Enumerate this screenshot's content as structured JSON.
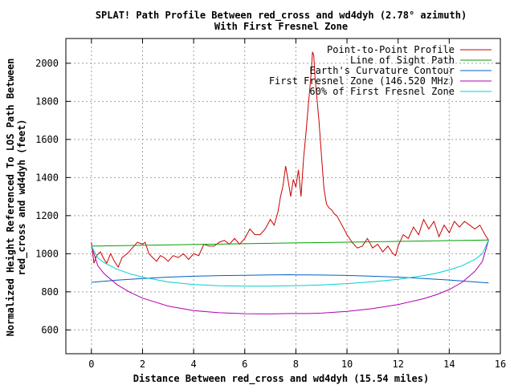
{
  "chart_data": {
    "type": "line",
    "title": "SPLAT! Path Profile Between red_cross and wd4dyh (2.78° azimuth)",
    "subtitle": "With First Fresnel Zone",
    "xlabel": "Distance Between red_cross and wd4dyh (15.54 miles)",
    "ylabel_line1": "Normalized Height Referenced To LOS Path Between",
    "ylabel_line2": "red_cross and wd4dyh (feet)",
    "xlim": [
      -1,
      16
    ],
    "ylim": [
      475,
      2130
    ],
    "xticks": [
      0,
      2,
      4,
      6,
      8,
      10,
      12,
      14,
      16
    ],
    "yticks": [
      600,
      800,
      1000,
      1200,
      1400,
      1600,
      1800,
      2000
    ],
    "grid": true,
    "legend_position": "top-right",
    "series": [
      {
        "name": "Point-to-Point Profile",
        "color": "#cc0000",
        "x": [
          0.0,
          0.1,
          0.2,
          0.35,
          0.5,
          0.6,
          0.75,
          0.9,
          1.05,
          1.2,
          1.4,
          1.6,
          1.8,
          2.0,
          2.1,
          2.25,
          2.4,
          2.55,
          2.7,
          2.85,
          3.0,
          3.2,
          3.4,
          3.6,
          3.8,
          4.0,
          4.2,
          4.4,
          4.6,
          4.8,
          5.0,
          5.2,
          5.4,
          5.6,
          5.8,
          6.0,
          6.2,
          6.4,
          6.6,
          6.8,
          7.0,
          7.15,
          7.3,
          7.4,
          7.5,
          7.6,
          7.7,
          7.8,
          7.9,
          8.0,
          8.1,
          8.2,
          8.3,
          8.4,
          8.5,
          8.6,
          8.65,
          8.7,
          8.75,
          8.8,
          8.9,
          9.0,
          9.1,
          9.2,
          9.3,
          9.4,
          9.5,
          9.6,
          9.8,
          10.0,
          10.2,
          10.4,
          10.6,
          10.8,
          11.0,
          11.2,
          11.4,
          11.6,
          11.8,
          11.9,
          12.0,
          12.2,
          12.4,
          12.6,
          12.8,
          13.0,
          13.2,
          13.4,
          13.6,
          13.8,
          14.0,
          14.2,
          14.4,
          14.6,
          14.8,
          15.0,
          15.2,
          15.4,
          15.54
        ],
        "values": [
          1060,
          950,
          990,
          1010,
          970,
          950,
          1000,
          960,
          930,
          980,
          1000,
          1030,
          1060,
          1050,
          1060,
          1000,
          980,
          960,
          990,
          980,
          960,
          990,
          980,
          1000,
          970,
          1000,
          990,
          1050,
          1040,
          1040,
          1060,
          1070,
          1050,
          1080,
          1050,
          1080,
          1130,
          1100,
          1100,
          1130,
          1180,
          1150,
          1220,
          1300,
          1360,
          1460,
          1380,
          1300,
          1390,
          1350,
          1440,
          1300,
          1500,
          1640,
          1800,
          1950,
          2060,
          2040,
          1920,
          1850,
          1700,
          1520,
          1340,
          1260,
          1240,
          1230,
          1210,
          1200,
          1150,
          1100,
          1060,
          1030,
          1040,
          1080,
          1030,
          1050,
          1010,
          1040,
          1000,
          990,
          1040,
          1100,
          1080,
          1140,
          1100,
          1180,
          1130,
          1170,
          1090,
          1150,
          1110,
          1170,
          1140,
          1170,
          1150,
          1130,
          1150,
          1100,
          1070
        ]
      },
      {
        "name": "Line of Sight Path",
        "color": "#00a000",
        "x": [
          0,
          15.54
        ],
        "values": [
          1040,
          1072
        ]
      },
      {
        "name": "Earth's Curvature Contour",
        "color": "#0060c0",
        "x": [
          0,
          1,
          2,
          3,
          4,
          5,
          6,
          7,
          7.77,
          8,
          9,
          10,
          11,
          12,
          13,
          14,
          15,
          15.54
        ],
        "values": [
          850,
          861,
          870,
          877,
          882,
          885,
          887,
          889,
          890,
          889,
          888,
          886,
          882,
          877,
          870,
          862,
          852,
          847
        ]
      },
      {
        "name": "First Fresnel Zone (146.520 MHz)",
        "color": "#b000b0",
        "x": [
          0,
          0.25,
          0.5,
          1,
          1.5,
          2,
          3,
          4,
          5,
          6,
          7,
          7.77,
          8.5,
          9,
          10,
          11,
          12,
          13,
          13.5,
          14,
          14.5,
          15,
          15.3,
          15.54
        ],
        "values": [
          1040,
          937,
          895,
          838,
          798,
          767,
          725,
          701,
          690,
          685,
          684,
          686,
          686,
          688,
          697,
          712,
          733,
          764,
          785,
          812,
          850,
          907,
          960,
          1072
        ]
      },
      {
        "name": "60% of First Fresnel Zone",
        "color": "#00d0d0",
        "x": [
          0,
          0.25,
          0.5,
          1,
          1.5,
          2,
          3,
          4,
          5,
          6,
          7,
          7.77,
          8.5,
          9,
          10,
          11,
          12,
          13,
          13.5,
          14,
          14.5,
          15,
          15.3,
          15.54
        ],
        "values": [
          1040,
          978,
          953,
          919,
          895,
          877,
          852,
          838,
          832,
          830,
          830,
          832,
          834,
          836,
          843,
          853,
          866,
          885,
          898,
          915,
          937,
          970,
          1000,
          1072
        ]
      }
    ]
  }
}
